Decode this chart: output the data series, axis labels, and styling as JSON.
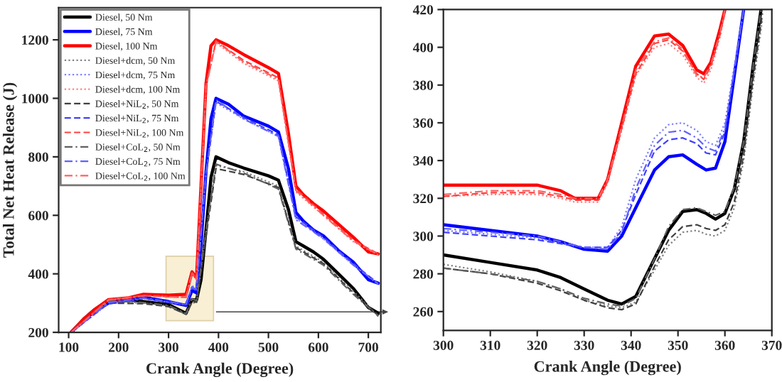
{
  "chart_data": [
    {
      "type": "line",
      "xlabel": "Crank Angle (Degree)",
      "ylabel": "Total Net Heat Release (J)",
      "xlim": [
        80,
        725
      ],
      "ylim": [
        200,
        1310
      ],
      "xticks": [
        100,
        200,
        300,
        400,
        500,
        600,
        700
      ],
      "yticks": [
        200,
        400,
        600,
        800,
        1000,
        1200
      ],
      "grid": false,
      "legend": "top left",
      "marker": "none",
      "series": [
        {
          "name": "Diesel, 50 Nm",
          "color": "#000000",
          "line_style": "solid",
          "x": [
            105,
            130,
            150,
            180,
            220,
            250,
            300,
            335,
            347,
            356,
            365,
            375,
            385,
            395,
            420,
            450,
            500,
            520,
            540,
            555,
            570,
            590,
            610,
            640,
            670,
            700,
            720
          ],
          "values": [
            200,
            245,
            275,
            310,
            312,
            305,
            295,
            265,
            312,
            310,
            380,
            550,
            730,
            800,
            780,
            762,
            735,
            720,
            620,
            510,
            495,
            475,
            450,
            400,
            350,
            285,
            265
          ]
        },
        {
          "name": "Diesel, 75 Nm",
          "color": "#0000ff",
          "line_style": "solid",
          "x": [
            105,
            130,
            150,
            180,
            220,
            250,
            300,
            335,
            347,
            356,
            365,
            375,
            385,
            395,
            420,
            450,
            500,
            520,
            540,
            555,
            570,
            590,
            610,
            640,
            670,
            700,
            720
          ],
          "values": [
            200,
            240,
            270,
            300,
            310,
            320,
            305,
            292,
            343,
            335,
            500,
            750,
            930,
            1000,
            980,
            940,
            905,
            885,
            760,
            610,
            580,
            550,
            530,
            480,
            440,
            380,
            368
          ]
        },
        {
          "name": "Diesel, 100 Nm",
          "color": "#ff0000",
          "line_style": "solid",
          "x": [
            105,
            130,
            150,
            180,
            220,
            250,
            300,
            335,
            347,
            356,
            365,
            375,
            385,
            395,
            420,
            450,
            500,
            520,
            540,
            555,
            570,
            590,
            610,
            640,
            670,
            700,
            720
          ],
          "values": [
            200,
            245,
            275,
            312,
            318,
            330,
            327,
            330,
            407,
            386,
            700,
            1050,
            1180,
            1200,
            1180,
            1150,
            1105,
            1085,
            880,
            700,
            670,
            640,
            615,
            570,
            525,
            475,
            468
          ]
        },
        {
          "name": "Diesel+dcm, 50 Nm",
          "color": "#808080",
          "line_style": "dotted",
          "x": [
            105,
            180,
            250,
            300,
            335,
            347,
            356,
            375,
            395,
            450,
            520,
            555,
            610,
            670,
            720
          ],
          "values": [
            200,
            305,
            300,
            290,
            262,
            302,
            300,
            540,
            770,
            750,
            700,
            495,
            440,
            340,
            255
          ]
        },
        {
          "name": "Diesel+dcm, 75 Nm",
          "color": "#8080ff",
          "line_style": "dotted",
          "x": [
            105,
            180,
            250,
            300,
            335,
            347,
            356,
            375,
            395,
            450,
            520,
            555,
            610,
            670,
            720
          ],
          "values": [
            200,
            298,
            315,
            303,
            294,
            360,
            347,
            745,
            985,
            930,
            870,
            590,
            520,
            430,
            365
          ]
        },
        {
          "name": "Diesel+dcm, 100 Nm",
          "color": "#ff8080",
          "line_style": "dotted",
          "x": [
            105,
            180,
            250,
            300,
            335,
            347,
            356,
            375,
            395,
            450,
            520,
            555,
            610,
            670,
            720
          ],
          "values": [
            200,
            310,
            325,
            322,
            320,
            402,
            380,
            1040,
            1190,
            1120,
            1060,
            680,
            600,
            510,
            465
          ]
        },
        {
          "name": "Diesel+NiL$_{2}$, 50 Nm",
          "color": "#404040",
          "line_style": "dashed",
          "x": [
            105,
            180,
            250,
            300,
            335,
            347,
            356,
            375,
            395,
            450,
            520,
            555,
            610,
            670,
            720
          ],
          "values": [
            200,
            300,
            298,
            288,
            262,
            305,
            303,
            530,
            760,
            740,
            695,
            490,
            435,
            335,
            258
          ]
        },
        {
          "name": "Diesel+NiL$_{2}$, 75 Nm",
          "color": "#4040ff",
          "line_style": "dashed",
          "x": [
            105,
            180,
            250,
            300,
            335,
            347,
            356,
            375,
            395,
            450,
            520,
            555,
            610,
            670,
            720
          ],
          "values": [
            200,
            300,
            316,
            304,
            294,
            352,
            343,
            740,
            990,
            935,
            875,
            595,
            525,
            435,
            366
          ]
        },
        {
          "name": "Diesel+NiL$_{2}$, 100 Nm",
          "color": "#ff4040",
          "line_style": "dashed",
          "x": [
            105,
            180,
            250,
            300,
            335,
            347,
            356,
            375,
            395,
            450,
            520,
            555,
            610,
            670,
            720
          ],
          "values": [
            200,
            312,
            326,
            322,
            320,
            404,
            383,
            1045,
            1195,
            1130,
            1070,
            690,
            605,
            515,
            468
          ]
        },
        {
          "name": "Diesel+CoL$_{2}$, 50 Nm",
          "color": "#606060",
          "line_style": "dashdot",
          "x": [
            105,
            180,
            250,
            300,
            335,
            347,
            356,
            375,
            395,
            450,
            520,
            555,
            610,
            670,
            720
          ],
          "values": [
            200,
            308,
            302,
            292,
            264,
            314,
            309,
            545,
            775,
            745,
            690,
            485,
            430,
            330,
            255
          ]
        },
        {
          "name": "Diesel+CoL$_{2}$, 75 Nm",
          "color": "#6060ff",
          "line_style": "dashdot",
          "x": [
            105,
            180,
            250,
            300,
            335,
            347,
            356,
            375,
            395,
            450,
            520,
            555,
            610,
            670,
            720
          ],
          "values": [
            200,
            302,
            318,
            305,
            294,
            356,
            345,
            745,
            995,
            930,
            870,
            585,
            520,
            430,
            365
          ]
        },
        {
          "name": "Diesel+CoL$_{2}$, 100 Nm",
          "color": "#ff6060",
          "line_style": "dashdot",
          "x": [
            105,
            180,
            250,
            300,
            335,
            347,
            356,
            375,
            395,
            450,
            520,
            555,
            610,
            670,
            720
          ],
          "values": [
            200,
            311,
            325,
            321,
            320,
            403,
            381,
            1040,
            1195,
            1125,
            1065,
            685,
            600,
            512,
            466
          ]
        }
      ]
    },
    {
      "type": "line",
      "xlabel": "Crank Angle (Degree)",
      "xlim": [
        300,
        370
      ],
      "ylim": [
        250,
        420
      ],
      "xticks": [
        300,
        310,
        320,
        330,
        340,
        350,
        360,
        370
      ],
      "yticks": [
        260,
        280,
        300,
        320,
        340,
        360,
        380,
        400,
        420
      ],
      "grid": false,
      "legend": false,
      "marker": "none",
      "series": [
        {
          "color": "#000000",
          "line_style": "solid",
          "x": [
            300,
            310,
            320,
            325,
            330,
            335,
            338,
            341,
            345,
            348,
            351,
            354,
            356,
            358,
            360,
            362,
            364,
            366,
            367.7
          ],
          "values": [
            290,
            286,
            282,
            278,
            272,
            266,
            264,
            268,
            288,
            303,
            313,
            314,
            312,
            309,
            312,
            325,
            350,
            390,
            420
          ]
        },
        {
          "color": "#0000ff",
          "line_style": "solid",
          "x": [
            300,
            310,
            320,
            325,
            330,
            335,
            338,
            341,
            345,
            348,
            351,
            354,
            356,
            358,
            360,
            362,
            364
          ],
          "values": [
            306,
            303,
            300,
            297,
            293,
            292,
            300,
            315,
            335,
            342,
            343,
            338,
            335,
            336,
            350,
            385,
            420
          ]
        },
        {
          "color": "#ff0000",
          "line_style": "solid",
          "x": [
            300,
            310,
            320,
            325,
            328,
            333,
            335,
            338,
            341,
            345,
            348,
            351,
            354,
            355.5,
            357,
            359,
            360
          ],
          "values": [
            327,
            327,
            327,
            324,
            320,
            320,
            330,
            360,
            390,
            406,
            407,
            401,
            388,
            386,
            392,
            410,
            420
          ]
        },
        {
          "color": "#808080",
          "line_style": "dotted",
          "x": [
            300,
            310,
            320,
            325,
            330,
            335,
            338,
            341,
            345,
            348,
            351,
            354,
            356,
            358,
            360,
            362,
            364,
            366,
            368
          ],
          "values": [
            285,
            281,
            276,
            272,
            266,
            263,
            262,
            265,
            282,
            295,
            302,
            303,
            301,
            300,
            303,
            315,
            340,
            380,
            415
          ]
        },
        {
          "color": "#8080ff",
          "line_style": "dotted",
          "x": [
            300,
            310,
            320,
            325,
            330,
            335,
            338,
            341,
            345,
            348,
            351,
            354,
            356,
            358,
            360,
            362,
            364
          ],
          "values": [
            303,
            301,
            299,
            296,
            294,
            294,
            305,
            330,
            352,
            359,
            360,
            356,
            350,
            348,
            360,
            390,
            420
          ]
        },
        {
          "color": "#ff8080",
          "line_style": "dotted",
          "x": [
            300,
            310,
            320,
            325,
            328,
            333,
            335,
            338,
            341,
            345,
            348,
            351,
            354,
            355.5,
            357,
            359,
            360
          ],
          "values": [
            321,
            322,
            322,
            320,
            318,
            318,
            328,
            356,
            385,
            400,
            402,
            396,
            384,
            381,
            388,
            406,
            418
          ]
        },
        {
          "color": "#404040",
          "line_style": "dashed",
          "x": [
            300,
            310,
            320,
            325,
            330,
            335,
            338,
            341,
            345,
            348,
            351,
            354,
            356,
            358,
            360,
            362,
            364,
            366,
            368
          ],
          "values": [
            283,
            280,
            275,
            271,
            266,
            262,
            261,
            264,
            284,
            298,
            305,
            306,
            304,
            303,
            306,
            318,
            343,
            383,
            418
          ]
        },
        {
          "color": "#4040ff",
          "line_style": "dashed",
          "x": [
            300,
            310,
            320,
            325,
            330,
            335,
            338,
            341,
            345,
            348,
            351,
            354,
            356,
            358,
            360,
            362,
            364
          ],
          "values": [
            302,
            300,
            298,
            296,
            294,
            294,
            303,
            322,
            345,
            351,
            352,
            349,
            344,
            343,
            355,
            387,
            420
          ]
        },
        {
          "color": "#ff4040",
          "line_style": "dashed",
          "x": [
            300,
            310,
            320,
            325,
            328,
            333,
            335,
            338,
            341,
            345,
            348,
            351,
            354,
            355.5,
            357,
            359,
            360
          ],
          "values": [
            321,
            323,
            323,
            321,
            319,
            319,
            329,
            357,
            386,
            402,
            404,
            398,
            386,
            383,
            390,
            407,
            419
          ]
        },
        {
          "color": "#606060",
          "line_style": "dashdot",
          "x": [
            300,
            310,
            320,
            325,
            330,
            335,
            338,
            341,
            345,
            348,
            351,
            354,
            356,
            358,
            360,
            362,
            364,
            366,
            367.7
          ],
          "values": [
            283,
            280,
            276,
            272,
            267,
            264,
            263,
            267,
            288,
            305,
            314,
            315,
            313,
            311,
            313,
            326,
            350,
            390,
            420
          ]
        },
        {
          "color": "#6060ff",
          "line_style": "dashdot",
          "x": [
            300,
            310,
            320,
            325,
            330,
            335,
            338,
            341,
            345,
            348,
            351,
            354,
            356,
            358,
            360,
            362,
            364
          ],
          "values": [
            304,
            302,
            300,
            297,
            294,
            293,
            302,
            325,
            348,
            355,
            356,
            352,
            347,
            345,
            357,
            388,
            420
          ]
        },
        {
          "color": "#ff6060",
          "line_style": "dashdot",
          "x": [
            300,
            310,
            320,
            325,
            328,
            333,
            335,
            338,
            341,
            345,
            348,
            351,
            354,
            355.5,
            357,
            359,
            360
          ],
          "values": [
            322,
            324,
            324,
            322,
            320,
            320,
            330,
            358,
            388,
            403,
            405,
            399,
            385,
            384,
            391,
            408,
            420
          ]
        }
      ]
    }
  ]
}
